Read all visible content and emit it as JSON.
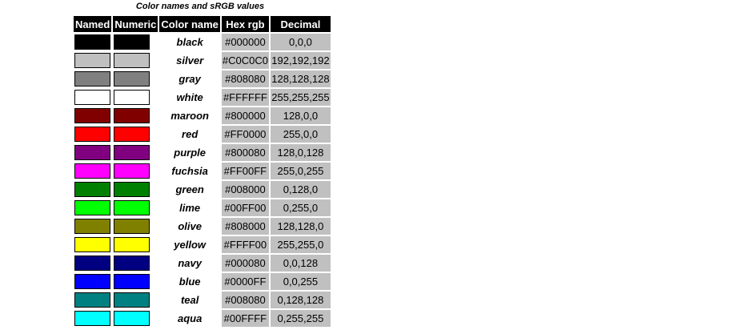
{
  "caption": "Color names and sRGB values",
  "headers": {
    "named": "Named",
    "numeric": "Numeric",
    "color_name": "Color name",
    "hex": "Hex rgb",
    "decimal": "Decimal"
  },
  "rows": [
    {
      "name": "black",
      "hex": "#000000",
      "decimal": "0,0,0"
    },
    {
      "name": "silver",
      "hex": "#C0C0C0",
      "decimal": "192,192,192"
    },
    {
      "name": "gray",
      "hex": "#808080",
      "decimal": "128,128,128"
    },
    {
      "name": "white",
      "hex": "#FFFFFF",
      "decimal": "255,255,255"
    },
    {
      "name": "maroon",
      "hex": "#800000",
      "decimal": "128,0,0"
    },
    {
      "name": "red",
      "hex": "#FF0000",
      "decimal": "255,0,0"
    },
    {
      "name": "purple",
      "hex": "#800080",
      "decimal": "128,0,128"
    },
    {
      "name": "fuchsia",
      "hex": "#FF00FF",
      "decimal": "255,0,255"
    },
    {
      "name": "green",
      "hex": "#008000",
      "decimal": "0,128,0"
    },
    {
      "name": "lime",
      "hex": "#00FF00",
      "decimal": "0,255,0"
    },
    {
      "name": "olive",
      "hex": "#808000",
      "decimal": "128,128,0"
    },
    {
      "name": "yellow",
      "hex": "#FFFF00",
      "decimal": "255,255,0"
    },
    {
      "name": "navy",
      "hex": "#000080",
      "decimal": "0,0,128"
    },
    {
      "name": "blue",
      "hex": "#0000FF",
      "decimal": "0,0,255"
    },
    {
      "name": "teal",
      "hex": "#008080",
      "decimal": "0,128,128"
    },
    {
      "name": "aqua",
      "hex": "#00FFFF",
      "decimal": "0,255,255"
    }
  ]
}
